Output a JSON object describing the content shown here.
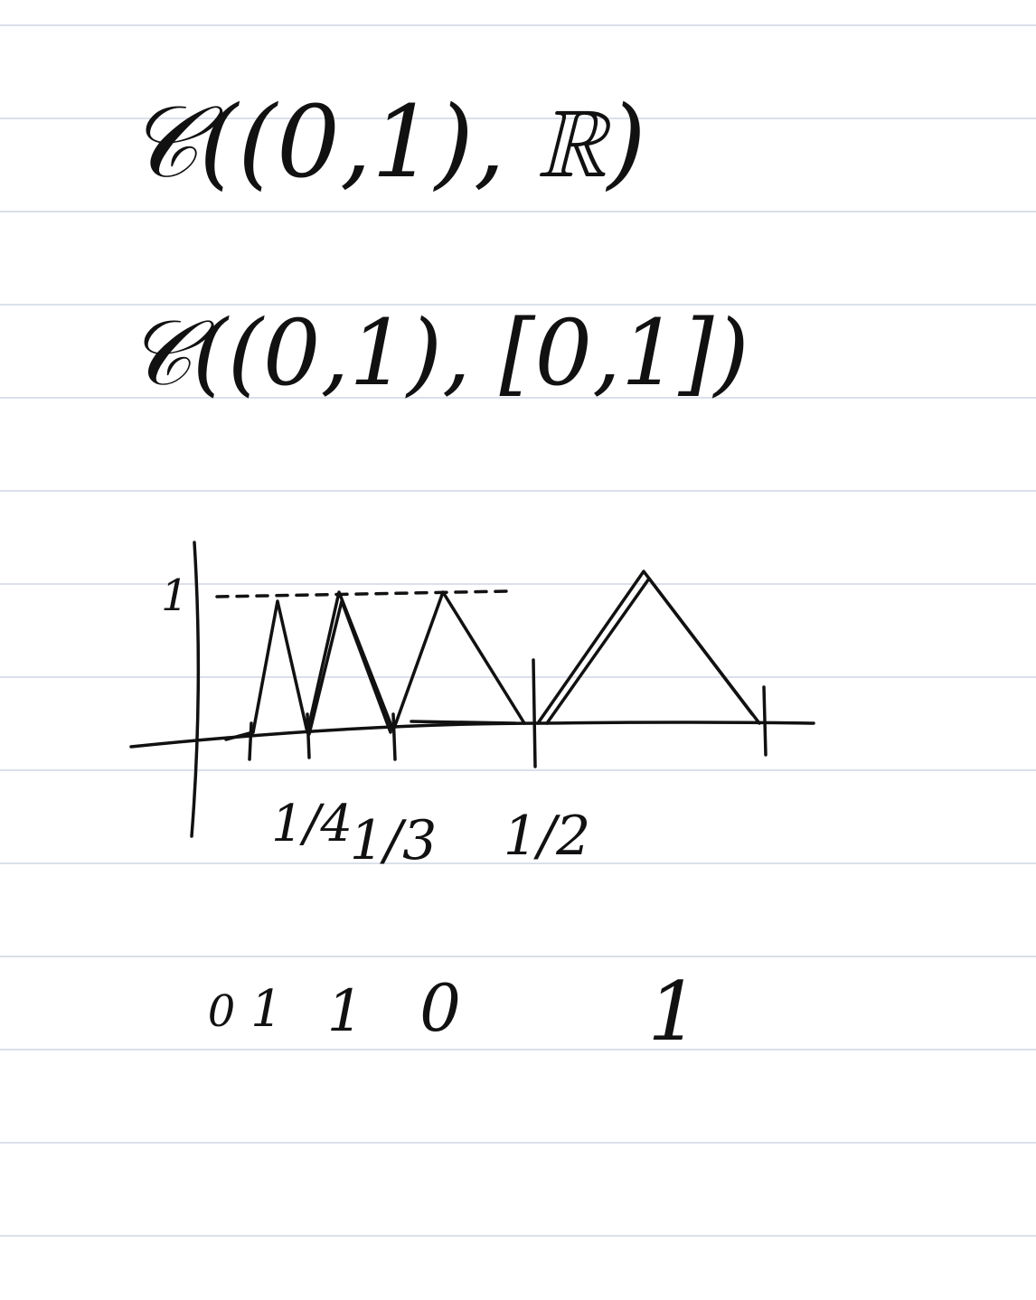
{
  "lines": [
    "𝒞((0,1), ℝ)",
    "𝒞((0,1), [0,1])"
  ],
  "sketch": {
    "y_label": "1",
    "x_labels": [
      "1/4",
      "1/3",
      "1/2"
    ]
  },
  "sequence": [
    "0",
    "1",
    "1",
    "0",
    "1"
  ]
}
